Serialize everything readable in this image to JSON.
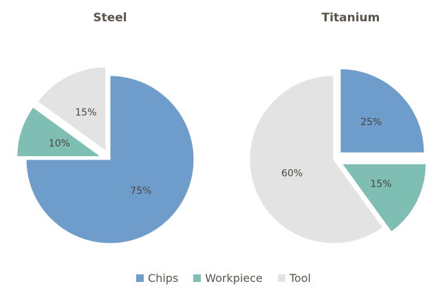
{
  "chart_data": [
    {
      "type": "pie",
      "title": "Steel",
      "start_angle_deg": 0,
      "slices": [
        {
          "label": "Chips",
          "value": 75,
          "text": "75%",
          "color": "#6e9dcb",
          "exploded": false
        },
        {
          "label": "Workpiece",
          "value": 10,
          "text": "10%",
          "color": "#7fbfb3",
          "exploded": true
        },
        {
          "label": "Tool",
          "value": 15,
          "text": "15%",
          "color": "#e3e3e3",
          "exploded": true
        }
      ]
    },
    {
      "type": "pie",
      "title": "Titanium",
      "start_angle_deg": 0,
      "slices": [
        {
          "label": "Chips",
          "value": 25,
          "text": "25%",
          "color": "#6e9dcb",
          "exploded": true
        },
        {
          "label": "Workpiece",
          "value": 15,
          "text": "15%",
          "color": "#7fbfb3",
          "exploded": true
        },
        {
          "label": "Tool",
          "value": 60,
          "text": "60%",
          "color": "#e3e3e3",
          "exploded": false
        }
      ]
    }
  ],
  "legend": {
    "position": "bottom",
    "items": [
      {
        "label": "Chips",
        "color": "#6e9dcb"
      },
      {
        "label": "Workpiece",
        "color": "#7fbfb3"
      },
      {
        "label": "Tool",
        "color": "#e3e3e3"
      }
    ]
  }
}
